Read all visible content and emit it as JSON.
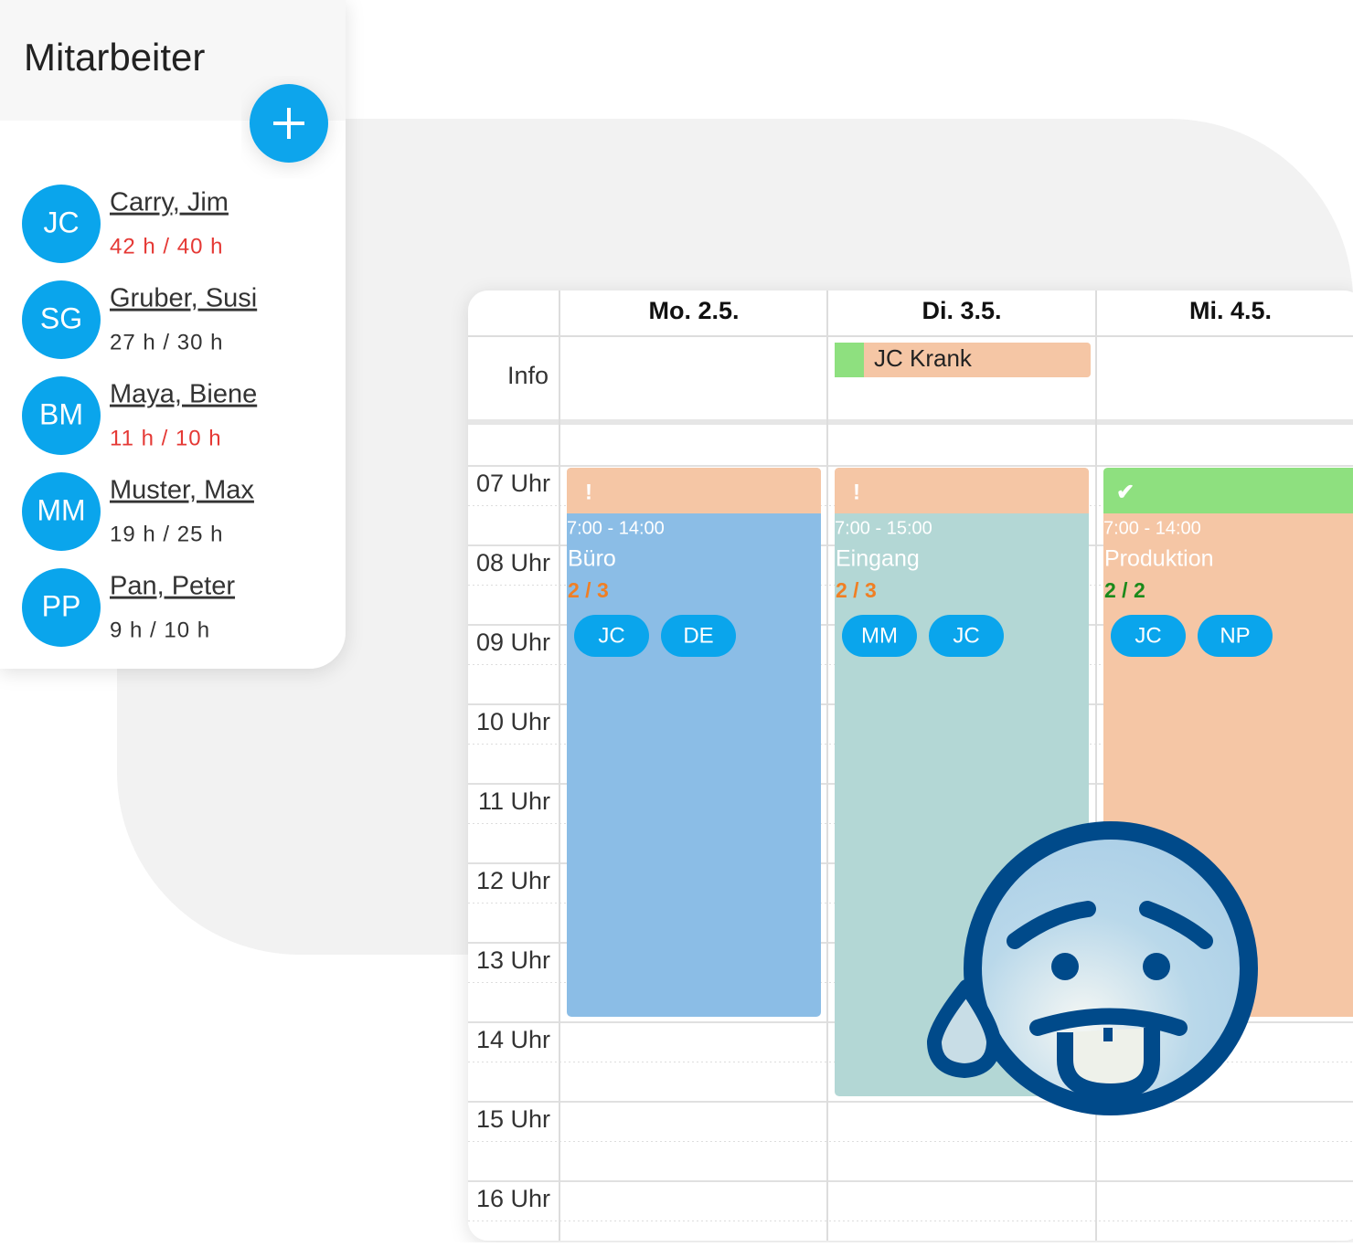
{
  "employees": {
    "title": "Mitarbeiter",
    "list": [
      {
        "initials": "JC",
        "name": "Carry, Jim",
        "hours": "42 h / 40 h",
        "hours_color": "#e53935"
      },
      {
        "initials": "SG",
        "name": "Gruber, Susi",
        "hours": "27 h / 30 h",
        "hours_color": "#333333"
      },
      {
        "initials": "BM",
        "name": "Maya, Biene",
        "hours": "11 h / 10 h",
        "hours_color": "#e53935"
      },
      {
        "initials": "MM",
        "name": "Muster, Max",
        "hours": "19 h / 25 h",
        "hours_color": "#333333"
      },
      {
        "initials": "PP",
        "name": "Pan, Peter",
        "hours": "9 h / 10 h",
        "hours_color": "#333333"
      }
    ]
  },
  "calendar": {
    "info_label": "Info",
    "hours": [
      "07 Uhr",
      "08 Uhr",
      "09 Uhr",
      "10 Uhr",
      "11 Uhr",
      "12 Uhr",
      "13 Uhr",
      "14 Uhr",
      "15 Uhr",
      "16 Uhr"
    ],
    "days": [
      {
        "label": "Mo. 2.5.",
        "shift": {
          "status": "!",
          "header_color": "#f5c6a5",
          "color": "#8bbde6",
          "time": "7:00 - 14:00",
          "place": "Büro",
          "staffing": "2 / 3",
          "staffing_color": "#f07f24",
          "people": [
            "JC",
            "DE"
          ]
        }
      },
      {
        "label": "Di. 3.5.",
        "info": "JC Krank",
        "shift": {
          "status": "!",
          "header_color": "#f5c6a5",
          "color": "#b3d7d5",
          "time": "7:00 - 15:00",
          "place": "Eingang",
          "staffing": "2 / 3",
          "staffing_color": "#f07f24",
          "people": [
            "MM",
            "JC"
          ]
        }
      },
      {
        "label": "Mi. 4.5.",
        "shift": {
          "status": "✔",
          "header_color": "#8ee07f",
          "color": "#f5c6a5",
          "time": "7:00 - 14:00",
          "place": "Produktion",
          "staffing": "2 / 2",
          "staffing_color": "#1a8a1a",
          "people": [
            "JC",
            "NP"
          ]
        }
      }
    ]
  }
}
